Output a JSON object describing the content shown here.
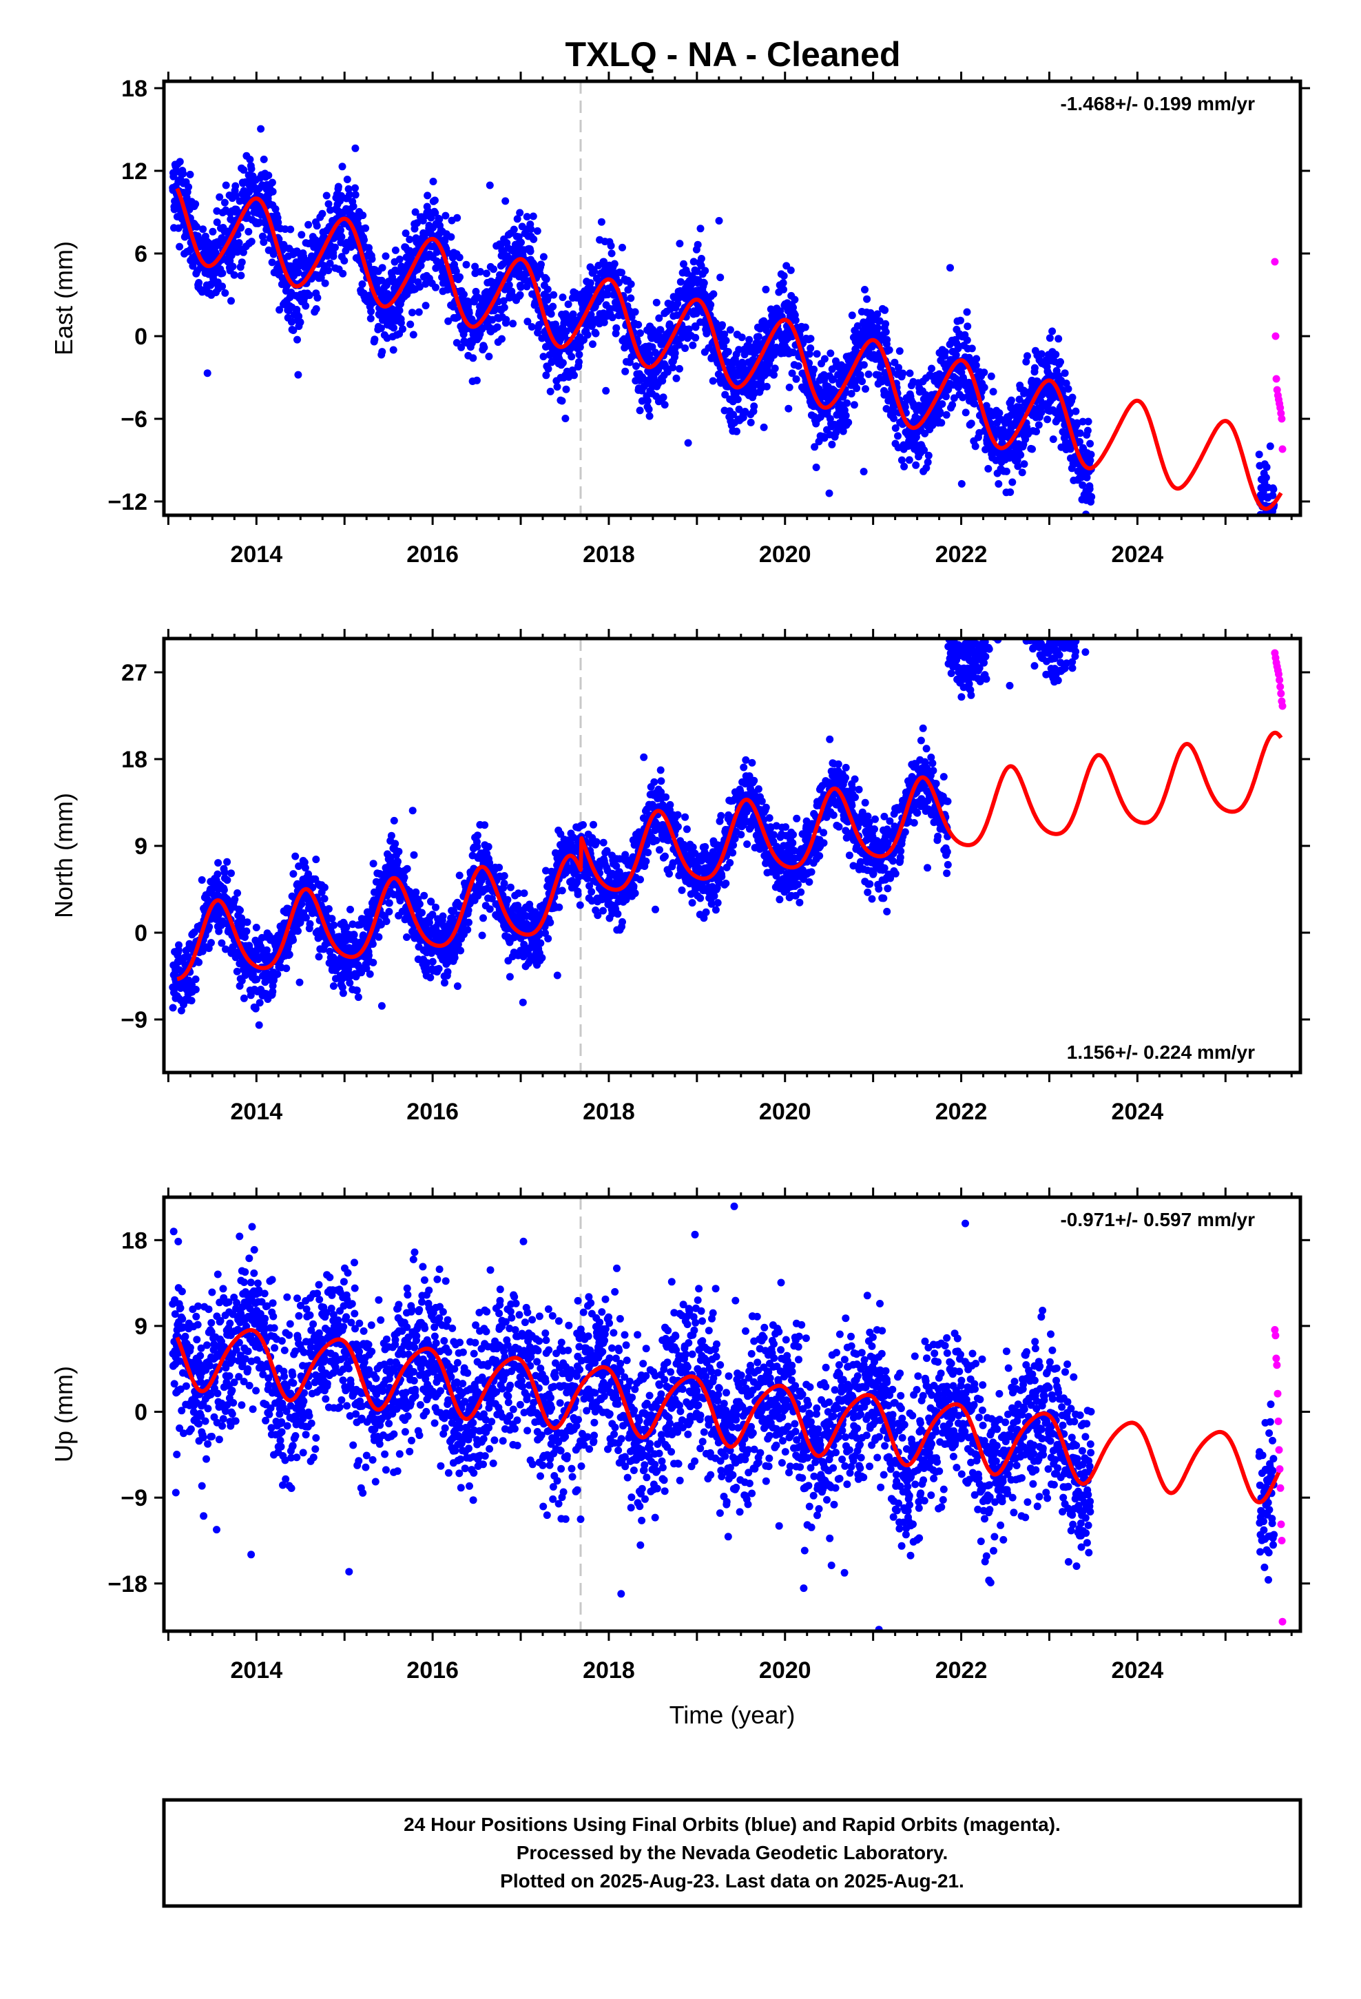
{
  "title": "TXLQ  - NA - Cleaned",
  "caption": {
    "lines": [
      "24 Hour Positions Using Final Orbits (blue) and Rapid Orbits (magenta).",
      "Processed by the Nevada Geodetic Laboratory.",
      "Plotted on 2025-Aug-23. Last data on 2025-Aug-21."
    ]
  },
  "colors": {
    "final_orbits": "#0000ff",
    "rapid_orbits": "#ff00ff",
    "model_fit": "#ff0000",
    "equipment_change_line": "#c8c8c8"
  },
  "chart_data": [
    {
      "type": "scatter",
      "component": "east",
      "ylabel": "East (mm)",
      "xlabel": "",
      "xlim": [
        2012.95,
        2025.85
      ],
      "ylim": [
        -13,
        18.5
      ],
      "yticks": [
        -12,
        -6,
        0,
        6,
        12,
        18
      ],
      "xticks": [
        2014,
        2016,
        2018,
        2020,
        2022,
        2024
      ],
      "rate": "-1.468+/- 0.199 mm/yr",
      "rate_position": "top-right",
      "equipment_change": 2017.68,
      "model": {
        "a": -1.468,
        "b": 1.2,
        "A1": 2.8,
        "p1": 1.7,
        "A2": 0.3,
        "p2": 0.5,
        "x0": 2018.0,
        "from": 2013.1,
        "to": 2025.63
      },
      "final_orbit_data": {
        "start": 2013.05,
        "end": 2023.48,
        "gap": [
          2023.48,
          2025.38
        ],
        "end2": 2025.55,
        "noise": 1.6
      },
      "rapid_orbit_values": [
        5.4,
        0.0,
        -3.1,
        -3.9,
        -4.3,
        -4.6,
        -4.9,
        -5.2,
        -5.6,
        -6.0,
        -8.2
      ],
      "rapid_orbit_x": [
        2025.56,
        2025.85
      ]
    },
    {
      "type": "scatter",
      "component": "north",
      "ylabel": "North (mm)",
      "xlabel": "",
      "xlim": [
        2012.95,
        2025.85
      ],
      "ylim": [
        -14.5,
        30.5
      ],
      "yticks": [
        -9,
        0,
        9,
        18,
        27
      ],
      "xticks": [
        2014,
        2016,
        2018,
        2020,
        2022,
        2024
      ],
      "rate": "1.156+/- 0.224 mm/yr",
      "rate_position": "bottom-right",
      "equipment_change": 2017.68,
      "model": {
        "a": 1.156,
        "b": 4.1,
        "A1": 3.8,
        "p1": 4.3,
        "A2": 0.6,
        "p2": 1.0,
        "x0": 2018.0,
        "from": 2013.1,
        "to": 2025.63,
        "offsets": [
          [
            2017.68,
            3.5
          ]
        ]
      },
      "final_orbit_data": {
        "start": 2013.05,
        "end": 2023.48,
        "gap": [
          2023.48,
          2025.38
        ],
        "end2": 2025.55,
        "noise": 1.8
      },
      "observed_offsets": [
        [
          2021.85,
          19.5
        ]
      ],
      "rapid_orbit_values": [
        29.0,
        28.5,
        28.0,
        27.6,
        27.2,
        26.8,
        26.2,
        25.5,
        24.8,
        24.0,
        23.5
      ],
      "rapid_orbit_x": [
        2025.56,
        2025.85
      ]
    },
    {
      "type": "scatter",
      "component": "up",
      "ylabel": "Up (mm)",
      "xlabel": "Time (year)",
      "xlim": [
        2012.95,
        2025.85
      ],
      "ylim": [
        -23,
        22.5
      ],
      "yticks": [
        -18,
        -9,
        0,
        9,
        18
      ],
      "xticks": [
        2014,
        2016,
        2018,
        2020,
        2022,
        2024
      ],
      "rate": "-0.971+/- 0.597 mm/yr",
      "rate_position": "top-right",
      "equipment_change": 2017.68,
      "model": {
        "a": -0.971,
        "b": 1.5,
        "A1": 3.4,
        "p1": 2.2,
        "A2": 0.5,
        "p2": 0.4,
        "x0": 2018.0,
        "from": 2013.1,
        "to": 2025.63
      },
      "final_orbit_data": {
        "start": 2013.05,
        "end": 2023.48,
        "gap": [
          2023.48,
          2025.38
        ],
        "end2": 2025.55,
        "noise": 4.2
      },
      "rapid_orbit_values": [
        8.6,
        8.0,
        5.6,
        4.9,
        1.9,
        -1.0,
        -4.0,
        -6.0,
        -8.0,
        -11.8,
        -13.5,
        -22.0
      ],
      "rapid_orbit_x": [
        2025.56,
        2025.85
      ]
    }
  ]
}
